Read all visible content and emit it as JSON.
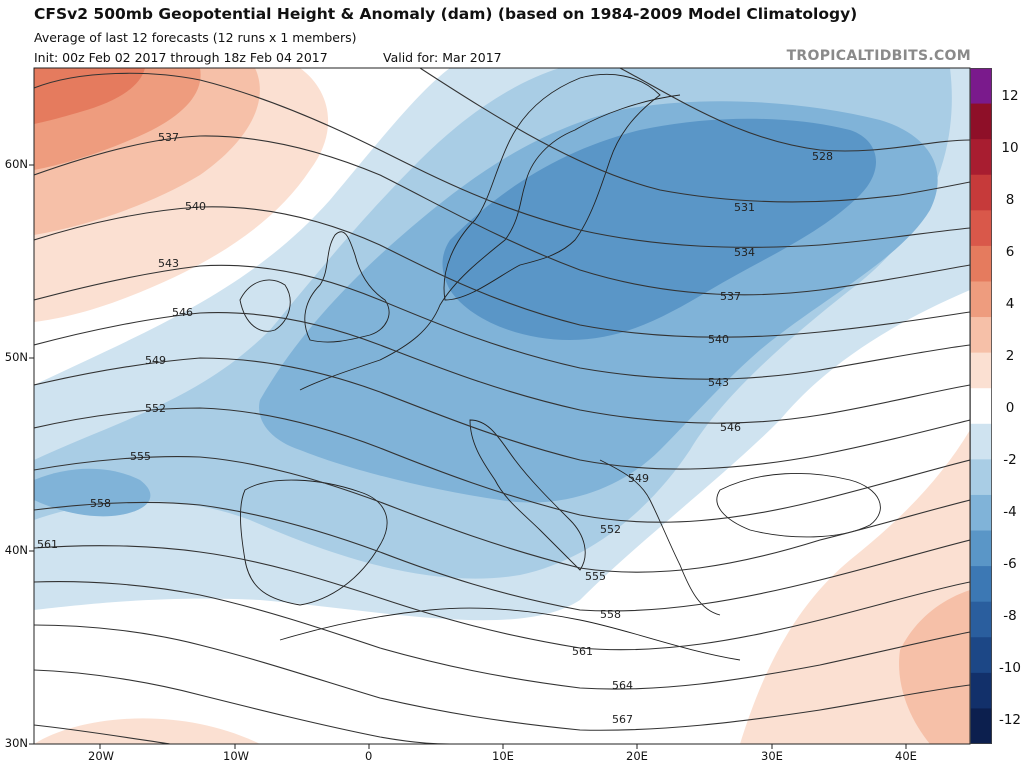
{
  "header": {
    "title": "CFSv2 500mb Geopotential Height & Anomaly (dam) (based on 1984-2009 Model Climatology)",
    "subtitle": "Average of last 12 forecasts (12 runs x 1 members)",
    "init": "Init: 00z Feb 02 2017 through 18z Feb 04 2017",
    "valid": "Valid for: Mar 2017",
    "brand": "TROPICALTIDBITS.COM"
  },
  "map": {
    "region": "Europe / North Atlantic / Mediterranean",
    "lat_labels": [
      "60N",
      "50N",
      "40N",
      "30N"
    ],
    "lon_labels": [
      "20W",
      "10W",
      "0",
      "10E",
      "20E",
      "30E",
      "40E"
    ],
    "contour_labels": [
      "528",
      "531",
      "534",
      "537",
      "540",
      "543",
      "546",
      "549",
      "552",
      "555",
      "558",
      "561",
      "564",
      "567"
    ]
  },
  "colorbar": {
    "labels": [
      "12",
      "10",
      "8",
      "6",
      "4",
      "2",
      "0",
      "-2",
      "-4",
      "-6",
      "-8",
      "-10",
      "-12"
    ],
    "colors": [
      "#7a1a8c",
      "#8e0f28",
      "#a81d30",
      "#c63a3a",
      "#d9584a",
      "#e57b5e",
      "#ee9c7e",
      "#f6c0a8",
      "#fbe0d2",
      "#ffffff",
      "#cfe3f0",
      "#a9cde5",
      "#80b3d8",
      "#5a96c7",
      "#3c78b4",
      "#2a5e9e",
      "#1c4786",
      "#12306a",
      "#0c1f4e"
    ],
    "neg_colors_note": "blue = negative anomaly, red = positive anomaly"
  }
}
